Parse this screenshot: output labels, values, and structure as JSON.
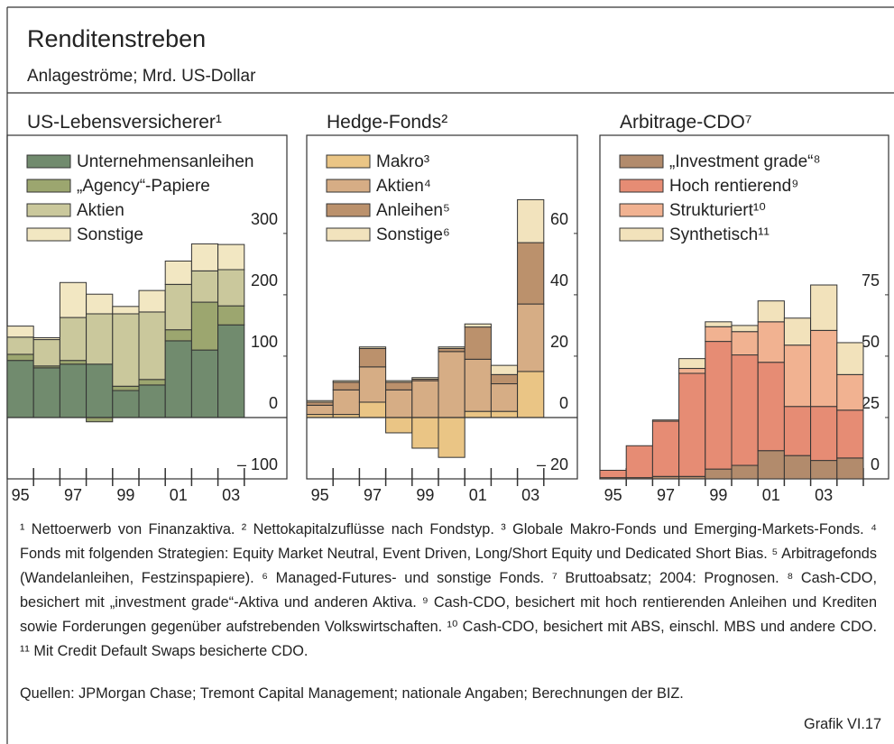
{
  "header": {
    "title": "Renditenstreben",
    "subtitle": "Anlageströme; Mrd. US-Dollar"
  },
  "chart_data": [
    {
      "type": "bar",
      "stacked": true,
      "title": "US-Lebensversicherer¹",
      "categories": [
        "95",
        null,
        "97",
        null,
        "99",
        null,
        "01",
        null,
        "03"
      ],
      "series": [
        {
          "name": "Unternehmensanleihen",
          "color": "#718b6e",
          "values": [
            93,
            81,
            87,
            87,
            44,
            53,
            125,
            110,
            151
          ]
        },
        {
          "name": "„Agency“-Papiere",
          "color": "#9ca66f",
          "values": [
            10,
            3,
            6,
            -7,
            7,
            9,
            18,
            78,
            31
          ]
        },
        {
          "name": "Aktien",
          "color": "#cac89c",
          "values": [
            28,
            43,
            70,
            82,
            118,
            110,
            74,
            51,
            59
          ]
        },
        {
          "name": "Sonstige",
          "color": "#f2e7c2",
          "values": [
            18,
            3,
            57,
            32,
            12,
            35,
            38,
            44,
            41
          ]
        }
      ],
      "ylim": [
        -100,
        460
      ],
      "yticks": [
        {
          "value": -100,
          "label": "– 100"
        },
        0,
        100,
        200,
        300
      ]
    },
    {
      "type": "bar",
      "stacked": true,
      "title": "Hedge-Fonds²",
      "categories": [
        "95",
        null,
        "97",
        null,
        "99",
        null,
        "01",
        null,
        "03"
      ],
      "series": [
        {
          "name": "Makro³",
          "color": "#eac585",
          "values": [
            1,
            1,
            5,
            -5,
            -10,
            -13,
            2,
            2,
            15
          ]
        },
        {
          "name": "Aktien⁴",
          "color": "#d6ad85",
          "values": [
            3,
            8,
            11.5,
            9,
            12,
            21.5,
            17,
            9,
            22
          ]
        },
        {
          "name": "Anleihen⁵",
          "color": "#bb916c",
          "values": [
            1,
            2.5,
            6,
            2.5,
            0.5,
            1,
            10.5,
            3,
            20
          ]
        },
        {
          "name": "Sonstige⁶",
          "color": "#f2e3bd",
          "values": [
            0.5,
            0.5,
            0.5,
            0.5,
            0.5,
            0.5,
            1,
            3,
            14
          ]
        }
      ],
      "ylim": [
        -20,
        92
      ],
      "yticks": [
        {
          "value": -20,
          "label": "– 20"
        },
        0,
        20,
        40,
        60
      ]
    },
    {
      "type": "bar",
      "stacked": true,
      "title": "Arbitrage-CDO⁷",
      "categories": [
        "95",
        null,
        "97",
        null,
        "99",
        null,
        "01",
        null,
        "03",
        null
      ],
      "series": [
        {
          "name": "„Investment grade“⁸",
          "color": "#b28b6c",
          "values": [
            0.5,
            0.5,
            1,
            1,
            4,
            5.5,
            11.5,
            9.5,
            7.5,
            8.5
          ]
        },
        {
          "name": "Hoch rentierend⁹",
          "color": "#e68c74",
          "values": [
            3,
            13,
            22.5,
            42,
            52,
            45,
            36,
            20,
            22,
            19.5
          ]
        },
        {
          "name": "Strukturiert¹⁰",
          "color": "#f1b291",
          "values": [
            0,
            0,
            0.5,
            2,
            6,
            9.5,
            16.5,
            25,
            31,
            14.5
          ]
        },
        {
          "name": "Synthetisch¹¹",
          "color": "#f2e2bb",
          "values": [
            0,
            0,
            0,
            4,
            2,
            2.5,
            8.5,
            11,
            18.5,
            13
          ]
        }
      ],
      "ylim": [
        0,
        140
      ],
      "yticks": [
        0,
        25,
        50,
        75
      ]
    }
  ],
  "footnotes": "¹ Nettoerwerb von Finanzaktiva.  ² Nettokapitalzuflüsse nach Fondstyp.  ³ Globale Makro-Fonds und Emerging-Markets-Fonds.  ⁴ Fonds mit folgenden Strategien: Equity Market Neutral, Event Driven, Long/Short Equity und Dedicated Short Bias.  ⁵ Arbitragefonds (Wandelanleihen, Festzinspapiere).  ⁶ Managed-Futures- und sonstige Fonds.  ⁷ Bruttoabsatz; 2004: Prognosen.  ⁸ Cash-CDO, besichert mit „investment grade“-Aktiva und anderen Aktiva.  ⁹ Cash-CDO, besichert mit hoch rentierenden Anleihen und Krediten sowie Forderungen gegenüber aufstrebenden Volkswirtschaften.  ¹⁰ Cash-CDO, besichert mit ABS, einschl. MBS und andere CDO.  ¹¹ Mit Credit Default Swaps besicherte CDO.",
  "source": "Quellen: JPMorgan Chase; Tremont Capital Management; nationale Angaben; Berechnungen der BIZ.",
  "figure_label": "Grafik VI.17"
}
